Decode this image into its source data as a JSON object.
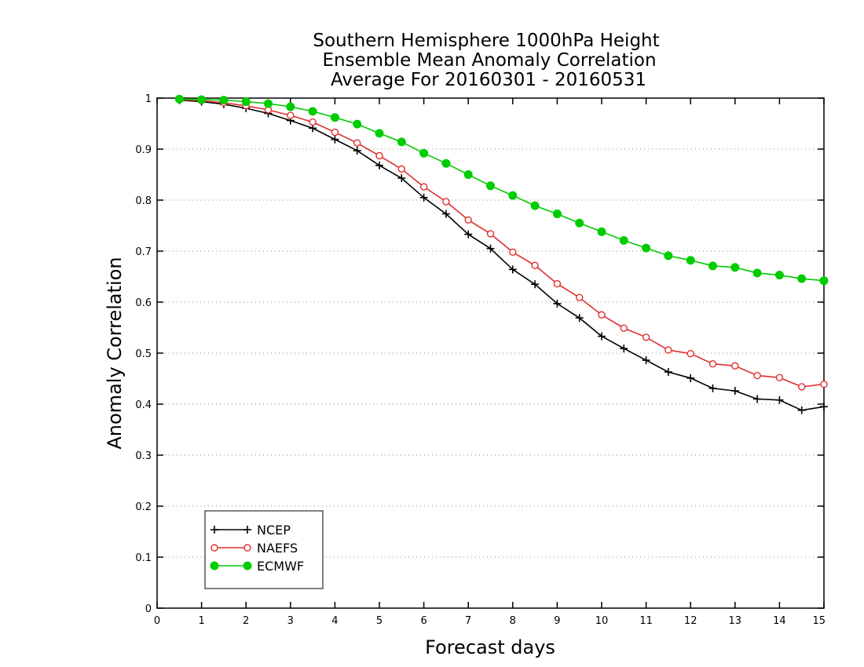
{
  "chart_data": {
    "type": "line",
    "title": [
      "Southern Hemisphere 1000hPa Height",
      "Ensemble Mean Anomaly Correlation",
      "Average For 20160301 - 20160531"
    ],
    "xlabel": "Forecast days",
    "ylabel": "Anomaly Correlation",
    "xlim": [
      0,
      15
    ],
    "ylim": [
      0,
      1
    ],
    "xticks": [
      "0",
      "1",
      "2",
      "3",
      "4",
      "5",
      "6",
      "7",
      "8",
      "9",
      "10",
      "11",
      "12",
      "13",
      "14",
      "15"
    ],
    "yticks": [
      "0",
      "0.1",
      "0.2",
      "0.3",
      "0.4",
      "0.5",
      "0.6",
      "0.7",
      "0.8",
      "0.9",
      "1"
    ],
    "grid": "horizontal dotted",
    "legend_position": "bottom-left",
    "x": [
      0.5,
      1,
      1.5,
      2,
      2.5,
      3,
      3.5,
      4,
      4.5,
      5,
      5.5,
      6,
      6.5,
      7,
      7.5,
      8,
      8.5,
      9,
      9.5,
      10,
      10.5,
      11,
      11.5,
      12,
      12.5,
      13,
      13.5,
      14,
      14.5,
      15
    ],
    "series": [
      {
        "name": "NCEP",
        "color": "#000000",
        "marker": "plus",
        "values": [
          0.996,
          0.993,
          0.988,
          0.98,
          0.97,
          0.956,
          0.941,
          0.919,
          0.897,
          0.868,
          0.843,
          0.805,
          0.773,
          0.733,
          0.705,
          0.664,
          0.635,
          0.597,
          0.569,
          0.533,
          0.509,
          0.486,
          0.463,
          0.451,
          0.431,
          0.426,
          0.41,
          0.408,
          0.388,
          0.395
        ]
      },
      {
        "name": "NAEFS",
        "color": "#e03030",
        "marker": "open-circle",
        "values": [
          0.997,
          0.995,
          0.991,
          0.985,
          0.977,
          0.966,
          0.953,
          0.933,
          0.912,
          0.887,
          0.861,
          0.826,
          0.797,
          0.761,
          0.734,
          0.698,
          0.672,
          0.636,
          0.609,
          0.575,
          0.549,
          0.531,
          0.506,
          0.499,
          0.479,
          0.475,
          0.456,
          0.452,
          0.434,
          0.439
        ]
      },
      {
        "name": "ECMWF",
        "color": "#00cc00",
        "marker": "filled-circle",
        "values": [
          0.998,
          0.997,
          0.996,
          0.993,
          0.989,
          0.983,
          0.974,
          0.962,
          0.949,
          0.931,
          0.914,
          0.892,
          0.872,
          0.85,
          0.828,
          0.809,
          0.789,
          0.773,
          0.755,
          0.738,
          0.721,
          0.706,
          0.691,
          0.682,
          0.671,
          0.668,
          0.657,
          0.653,
          0.646,
          0.642
        ]
      }
    ]
  }
}
